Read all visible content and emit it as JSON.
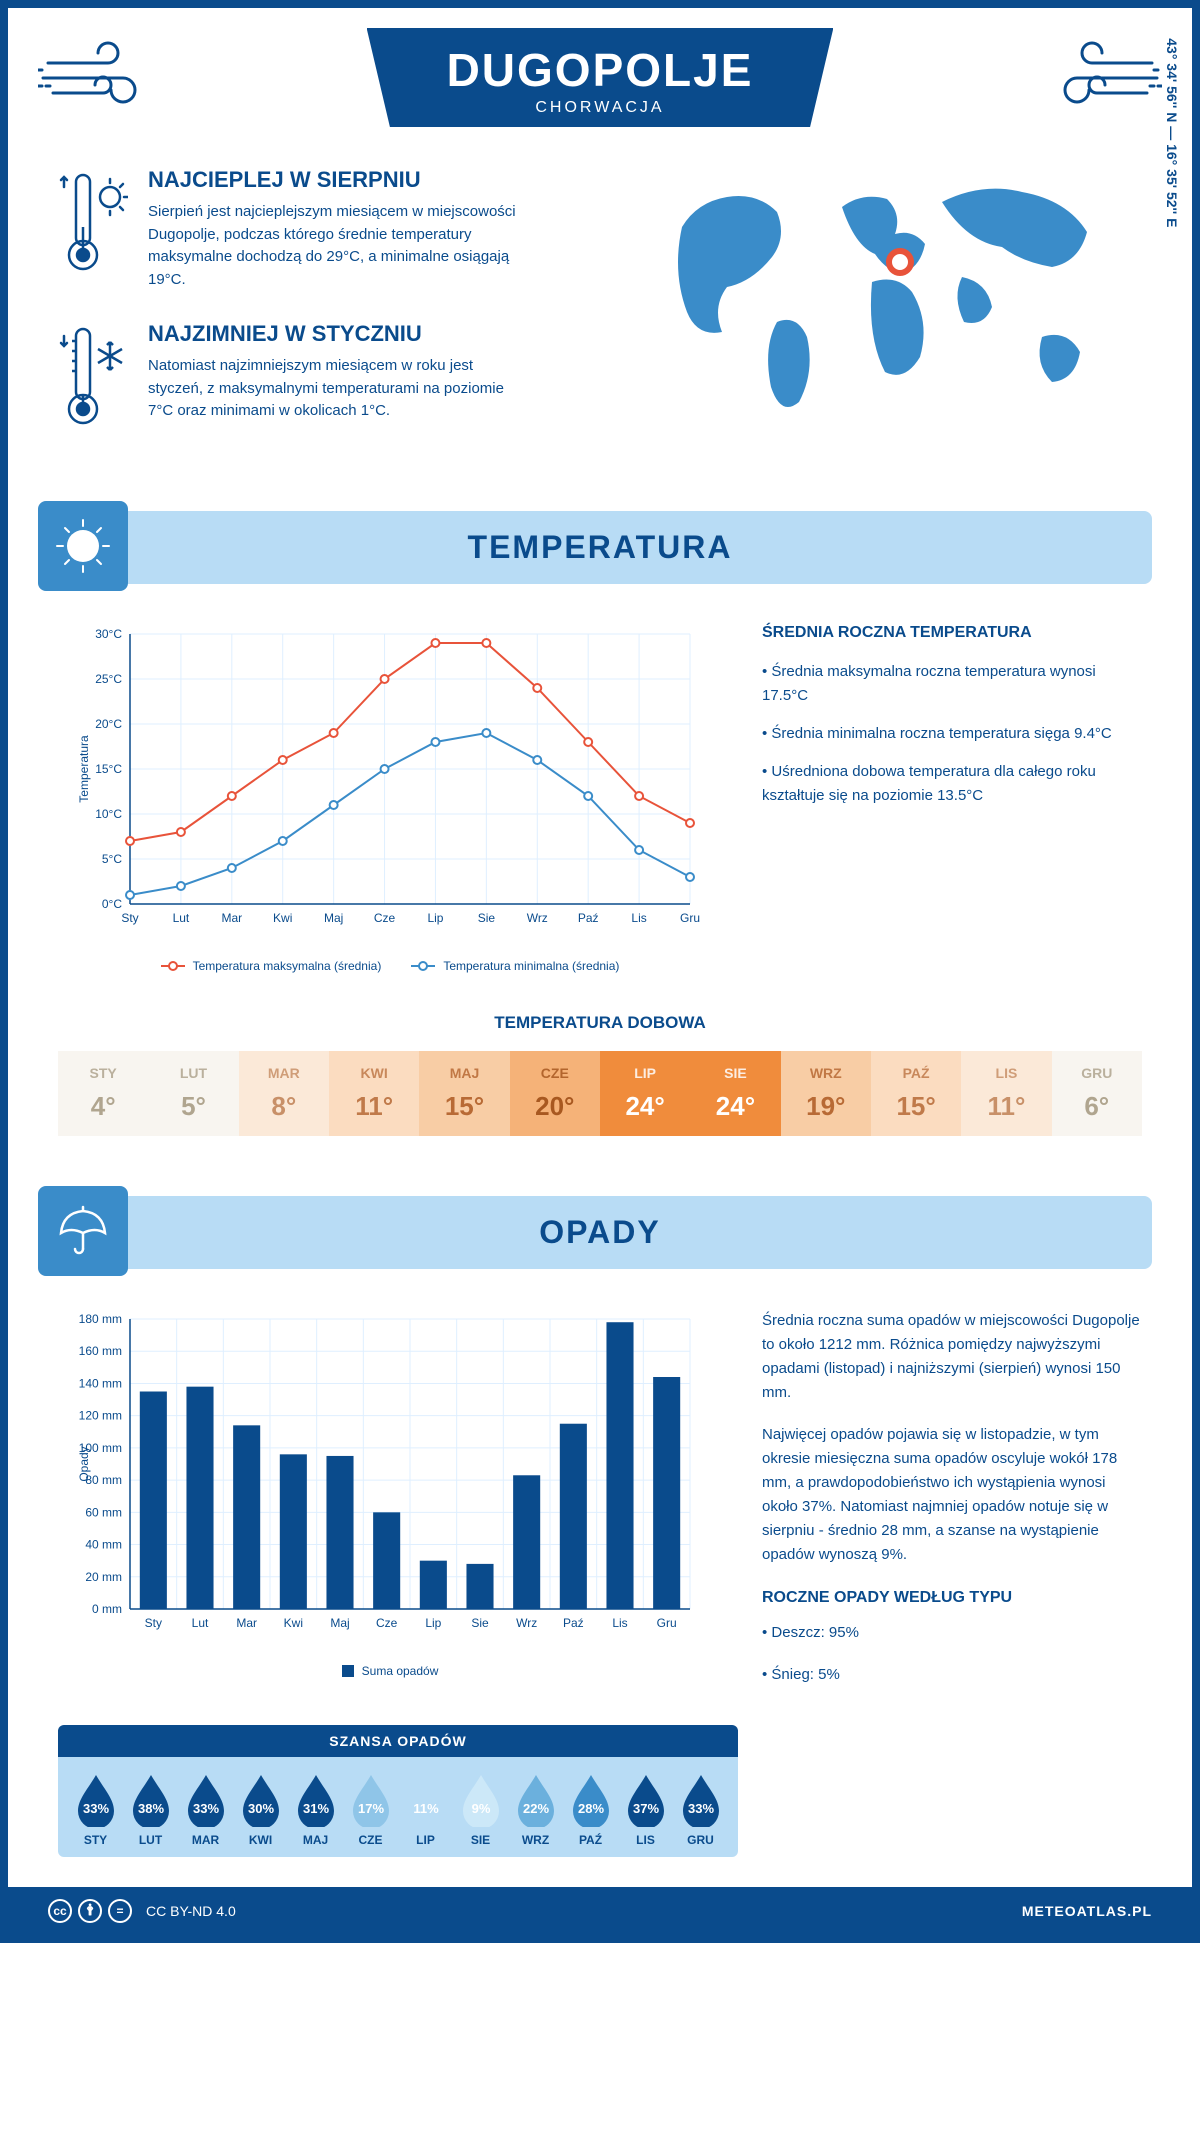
{
  "header": {
    "title": "DUGOPOLJE",
    "subtitle": "CHORWACJA"
  },
  "coords": "43° 34' 56'' N — 16° 35' 52'' E",
  "intro": {
    "warmest": {
      "heading": "NAJCIEPLEJ W SIERPNIU",
      "text": "Sierpień jest najcieplejszym miesiącem w miejscowości Dugopolje, podczas którego średnie temperatury maksymalne dochodzą do 29°C, a minimalne osiągają 19°C."
    },
    "coldest": {
      "heading": "NAJZIMNIEJ W STYCZNIU",
      "text": "Natomiast najzimniejszym miesiącem w roku jest styczeń, z maksymalnymi temperaturami na poziomie 7°C oraz minimami w okolicach 1°C."
    }
  },
  "months_short": [
    "Sty",
    "Lut",
    "Mar",
    "Kwi",
    "Maj",
    "Cze",
    "Lip",
    "Sie",
    "Wrz",
    "Paź",
    "Lis",
    "Gru"
  ],
  "months_upper": [
    "STY",
    "LUT",
    "MAR",
    "KWI",
    "MAJ",
    "CZE",
    "LIP",
    "SIE",
    "WRZ",
    "PAŹ",
    "LIS",
    "GRU"
  ],
  "temperature": {
    "section_title": "TEMPERATURA",
    "chart": {
      "type": "line",
      "ylabel": "Temperatura",
      "ylim": [
        0,
        30
      ],
      "ytick_step": 5,
      "ytick_labels": [
        "0°C",
        "5°C",
        "10°C",
        "15°C",
        "20°C",
        "25°C",
        "30°C"
      ],
      "grid_color": "#dfefff",
      "axis_color": "#0a4b8c",
      "series": {
        "max": {
          "label": "Temperatura maksymalna (średnia)",
          "color": "#e8533a",
          "values": [
            7,
            8,
            12,
            16,
            19,
            25,
            29,
            29,
            24,
            18,
            12,
            9
          ]
        },
        "min": {
          "label": "Temperatura minimalna (średnia)",
          "color": "#3a8cc9",
          "values": [
            1,
            2,
            4,
            7,
            11,
            15,
            18,
            19,
            16,
            12,
            6,
            3
          ]
        }
      }
    },
    "info": {
      "heading": "ŚREDNIA ROCZNA TEMPERATURA",
      "bullets": [
        "• Średnia maksymalna roczna temperatura wynosi 17.5°C",
        "• Średnia minimalna roczna temperatura sięga 9.4°C",
        "• Uśredniona dobowa temperatura dla całego roku kształtuje się na poziomie 13.5°C"
      ]
    },
    "daily": {
      "heading": "TEMPERATURA DOBOWA",
      "values": [
        "4°",
        "5°",
        "8°",
        "11°",
        "15°",
        "20°",
        "24°",
        "24°",
        "19°",
        "15°",
        "11°",
        "6°"
      ],
      "bg_colors": [
        "#f8f5f0",
        "#f8f5f0",
        "#fbe9d8",
        "#fbdcc0",
        "#f8cda5",
        "#f5b278",
        "#f08c3c",
        "#f08c3c",
        "#f8cda5",
        "#fbdcc0",
        "#fbe9d8",
        "#f8f5f0"
      ],
      "text_colors": [
        "#b0a58f",
        "#b0a58f",
        "#c89068",
        "#c07a4a",
        "#b86a35",
        "#a85820",
        "#ffffff",
        "#ffffff",
        "#b86a35",
        "#c07a4a",
        "#c89068",
        "#b0a58f"
      ]
    }
  },
  "precip": {
    "section_title": "OPADY",
    "chart": {
      "type": "bar",
      "ylabel": "Opady",
      "ylim": [
        0,
        180
      ],
      "ytick_step": 20,
      "ytick_labels": [
        "0 mm",
        "20 mm",
        "40 mm",
        "60 mm",
        "80 mm",
        "100 mm",
        "120 mm",
        "140 mm",
        "160 mm",
        "180 mm"
      ],
      "bar_color": "#0a4b8c",
      "grid_color": "#dfefff",
      "values": [
        135,
        138,
        114,
        96,
        95,
        60,
        30,
        28,
        83,
        115,
        178,
        144
      ],
      "legend_label": "Suma opadów"
    },
    "info": {
      "p1": "Średnia roczna suma opadów w miejscowości Dugopolje to około 1212 mm. Różnica pomiędzy najwyższymi opadami (listopad) i najniższymi (sierpień) wynosi 150 mm.",
      "p2": "Najwięcej opadów pojawia się w listopadzie, w tym okresie miesięczna suma opadów oscyluje wokół 178 mm, a prawdopodobieństwo ich wystąpienia wynosi około 37%. Natomiast najmniej opadów notuje się w sierpniu - średnio 28 mm, a szanse na wystąpienie opadów wynoszą 9%.",
      "type_heading": "ROCZNE OPADY WEDŁUG TYPU",
      "type_bullets": [
        "• Deszcz: 95%",
        "• Śnieg: 5%"
      ]
    },
    "chance": {
      "heading": "SZANSA OPADÓW",
      "values": [
        "33%",
        "38%",
        "33%",
        "30%",
        "31%",
        "17%",
        "11%",
        "9%",
        "22%",
        "28%",
        "37%",
        "33%"
      ],
      "drop_colors": [
        "#0a4b8c",
        "#0a4b8c",
        "#0a4b8c",
        "#0a4b8c",
        "#0a4b8c",
        "#8fc5e8",
        "#b8dcf5",
        "#cce8f8",
        "#6bb0dd",
        "#3a8cc9",
        "#0a4b8c",
        "#0a4b8c"
      ]
    }
  },
  "footer": {
    "license": "CC BY-ND 4.0",
    "site": "METEOATLAS.PL"
  }
}
